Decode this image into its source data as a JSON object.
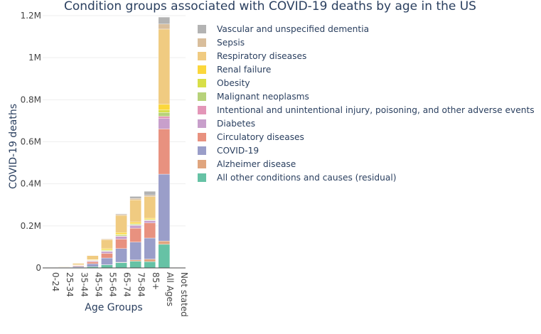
{
  "chart_data": {
    "type": "bar",
    "stacked": true,
    "title": "Condition groups associated with COVID-19 deaths by age in the US",
    "xlabel": "Age Groups",
    "ylabel": "COVID-19 deaths",
    "ylim": [
      0,
      1200000
    ],
    "yticks": [
      {
        "value": 0,
        "label": "0"
      },
      {
        "value": 200000,
        "label": "0.2M"
      },
      {
        "value": 400000,
        "label": "0.4M"
      },
      {
        "value": 600000,
        "label": "0.6M"
      },
      {
        "value": 800000,
        "label": "0.8M"
      },
      {
        "value": 1000000,
        "label": "1M"
      },
      {
        "value": 1200000,
        "label": "1.2M"
      }
    ],
    "grid": true,
    "legend_position": "right",
    "categories": [
      "0-24",
      "25-34",
      "35-44",
      "45-54",
      "55-64",
      "65-74",
      "75-84",
      "85+",
      "All Ages",
      "Not stated"
    ],
    "series": [
      {
        "name": "All other conditions and causes (residual)",
        "color": "#66c2a5",
        "values": [
          300,
          700,
          2000,
          6000,
          15000,
          25000,
          32000,
          30000,
          112000,
          0
        ]
      },
      {
        "name": "Alzheimer disease",
        "color": "#e0a57e",
        "values": [
          0,
          0,
          0,
          0,
          200,
          2000,
          6000,
          12000,
          16000,
          0
        ]
      },
      {
        "name": "COVID-19",
        "color": "#9a9ec9",
        "values": [
          500,
          1500,
          5000,
          14000,
          32000,
          65000,
          85000,
          100000,
          318000,
          0
        ]
      },
      {
        "name": "Circulatory diseases",
        "color": "#e8917f",
        "values": [
          300,
          1000,
          3500,
          9000,
          22000,
          45000,
          66000,
          72000,
          215000,
          0
        ]
      },
      {
        "name": "Diabetes",
        "color": "#c89fcb",
        "values": [
          100,
          400,
          1400,
          4000,
          9000,
          13000,
          13000,
          10000,
          50000,
          0
        ]
      },
      {
        "name": "Intentional and unintentional injury, poisoning, and other adverse events",
        "color": "#e396b8",
        "values": [
          100,
          300,
          600,
          1000,
          1500,
          2000,
          2000,
          2500,
          10000,
          0
        ]
      },
      {
        "name": "Malignant neoplasms",
        "color": "#b7d27a",
        "values": [
          100,
          200,
          500,
          1500,
          3500,
          5000,
          4500,
          3500,
          18000,
          0
        ]
      },
      {
        "name": "Obesity",
        "color": "#d8df48",
        "values": [
          100,
          300,
          1000,
          2000,
          3500,
          3000,
          1500,
          500,
          12000,
          0
        ]
      },
      {
        "name": "Renal failure",
        "color": "#fbd73c",
        "values": [
          100,
          300,
          800,
          2000,
          5000,
          8000,
          7000,
          6000,
          27000,
          0
        ]
      },
      {
        "name": "Respiratory diseases",
        "color": "#f0cb81",
        "values": [
          700,
          2000,
          7000,
          19000,
          43000,
          82000,
          107000,
          103000,
          358000,
          0
        ]
      },
      {
        "name": "Sepsis",
        "color": "#d9be9c",
        "values": [
          100,
          200,
          600,
          1500,
          3000,
          5000,
          6000,
          6000,
          24000,
          0
        ]
      },
      {
        "name": "Vascular and unspecified dementia",
        "color": "#b3b3b3",
        "values": [
          0,
          0,
          0,
          100,
          500,
          3000,
          10000,
          19000,
          33000,
          0
        ]
      }
    ]
  }
}
